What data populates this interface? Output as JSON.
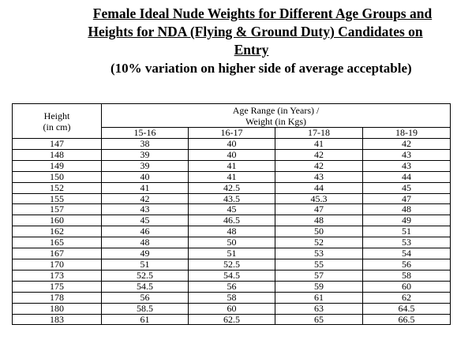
{
  "title": {
    "line1": "Female Ideal Nude Weights for Different Age Groups and",
    "line2": "Heights for NDA (Flying & Ground Duty) Candidates on",
    "line3": "Entry"
  },
  "subtitle": "(10% variation on higher side of average acceptable)",
  "table": {
    "height_header_line1": "Height",
    "height_header_line2": "(in cm)",
    "range_header_line1": "Age Range (in Years) /",
    "range_header_line2": "Weight (in Kgs)",
    "age_groups": [
      "15-16",
      "16-17",
      "17-18",
      "18-19"
    ],
    "rows": [
      {
        "height": "147",
        "w": [
          "38",
          "40",
          "41",
          "42"
        ]
      },
      {
        "height": "148",
        "w": [
          "39",
          "40",
          "42",
          "43"
        ]
      },
      {
        "height": "149",
        "w": [
          "39",
          "41",
          "42",
          "43"
        ]
      },
      {
        "height": "150",
        "w": [
          "40",
          "41",
          "43",
          "44"
        ]
      },
      {
        "height": "152",
        "w": [
          "41",
          "42.5",
          "44",
          "45"
        ]
      },
      {
        "height": "155",
        "w": [
          "42",
          "43.5",
          "45.3",
          "47"
        ]
      },
      {
        "height": "157",
        "w": [
          "43",
          "45",
          "47",
          "48"
        ]
      },
      {
        "height": "160",
        "w": [
          "45",
          "46.5",
          "48",
          "49"
        ]
      },
      {
        "height": "162",
        "w": [
          "46",
          "48",
          "50",
          "51"
        ]
      },
      {
        "height": "165",
        "w": [
          "48",
          "50",
          "52",
          "53"
        ]
      },
      {
        "height": "167",
        "w": [
          "49",
          "51",
          "53",
          "54"
        ]
      },
      {
        "height": "170",
        "w": [
          "51",
          "52.5",
          "55",
          "56"
        ]
      },
      {
        "height": "173",
        "w": [
          "52.5",
          "54.5",
          "57",
          "58"
        ]
      },
      {
        "height": "175",
        "w": [
          "54.5",
          "56",
          "59",
          "60"
        ]
      },
      {
        "height": "178",
        "w": [
          "56",
          "58",
          "61",
          "62"
        ]
      },
      {
        "height": "180",
        "w": [
          "58.5",
          "60",
          "63",
          "64.5"
        ]
      },
      {
        "height": "183",
        "w": [
          "61",
          "62.5",
          "65",
          "66.5"
        ]
      }
    ]
  }
}
